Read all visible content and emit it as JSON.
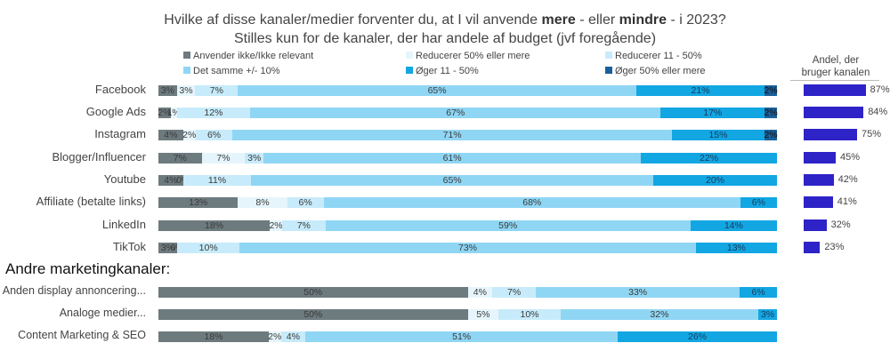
{
  "chart_data": {
    "type": "bar",
    "orientation": "horizontal-stacked-percent",
    "title_parts": [
      {
        "text": "Hvilke af disse kanaler/medier forventer du, at I vil anvende ",
        "bold": false
      },
      {
        "text": "mere",
        "bold": true
      },
      {
        "text": " - eller ",
        "bold": false
      },
      {
        "text": "mindre",
        "bold": true
      },
      {
        "text": " - i 2023?",
        "bold": false
      }
    ],
    "subtitle": "Stilles kun for de kanaler, der har andele af budget (jvf foregående)",
    "series": [
      {
        "name": "Anvender ikke/Ikke relevant",
        "color": "#6d7a7e",
        "label_color": "#3a3a3a"
      },
      {
        "name": "Reducerer 50% eller mere",
        "color": "#e6f5fc",
        "label_color": "#3a3a3a"
      },
      {
        "name": "Reducerer 11 - 50%",
        "color": "#c7ebfa",
        "label_color": "#3a3a3a"
      },
      {
        "name": "Det samme +/- 10%",
        "color": "#8fd6f4",
        "label_color": "#3a3a3a"
      },
      {
        "name": "Øger 11 - 50%",
        "color": "#12a6e2",
        "label_color": "#1a3a5a"
      },
      {
        "name": "Øger 50% eller mere",
        "color": "#1a5f9a",
        "label_color": "#111111"
      }
    ],
    "share_header": [
      "Andel, der",
      "bruger kanalen"
    ],
    "section_label": "Andre marketingkanaler:",
    "rows": [
      {
        "category": "Facebook",
        "values": [
          3,
          3,
          7,
          65,
          21,
          2
        ],
        "labels": [
          "3%",
          "3%",
          "7%",
          "65%",
          "21%",
          "2%"
        ],
        "share": 87,
        "share_label": "87%"
      },
      {
        "category": "Google Ads",
        "values": [
          2,
          1,
          12,
          67,
          17,
          2
        ],
        "labels": [
          "2%",
          "1%",
          "12%",
          "67%",
          "17%",
          "2%"
        ],
        "share": 84,
        "share_label": "84%"
      },
      {
        "category": "Instagram",
        "values": [
          4,
          2,
          6,
          71,
          15,
          2
        ],
        "labels": [
          "4%",
          "2%",
          "6%",
          "71%",
          "15%",
          "2%"
        ],
        "share": 75,
        "share_label": "75%"
      },
      {
        "category": "Blogger/Influencer",
        "values": [
          7,
          7,
          3,
          61,
          22,
          0
        ],
        "labels": [
          "7%",
          "7%",
          "3%",
          "61%",
          "22%",
          ""
        ],
        "share": 45,
        "share_label": "45%"
      },
      {
        "category": "Youtube",
        "values": [
          4,
          0,
          11,
          65,
          20,
          0
        ],
        "labels": [
          "4%",
          "0%",
          "11%",
          "65%",
          "20%",
          ""
        ],
        "share": 42,
        "share_label": "42%"
      },
      {
        "category": "Affiliate (betalte links)",
        "values": [
          13,
          8,
          6,
          68,
          6,
          0
        ],
        "labels": [
          "13%",
          "8%",
          "6%",
          "68%",
          "6%",
          ""
        ],
        "share": 41,
        "share_label": "41%"
      },
      {
        "category": "LinkedIn",
        "values": [
          18,
          2,
          7,
          59,
          14,
          0
        ],
        "labels": [
          "18%",
          "2%",
          "7%",
          "59%",
          "14%",
          ""
        ],
        "share": 32,
        "share_label": "32%"
      },
      {
        "category": "TikTok",
        "values": [
          3,
          0,
          10,
          73,
          13,
          0
        ],
        "labels": [
          "3%",
          "0%",
          "10%",
          "73%",
          "13%",
          ""
        ],
        "share": 23,
        "share_label": "23%"
      },
      {
        "category": "Anden display annoncering...",
        "values": [
          50,
          4,
          7,
          33,
          6,
          0
        ],
        "labels": [
          "50%",
          "4%",
          "7%",
          "33%",
          "6%",
          ""
        ]
      },
      {
        "category": "Analoge medier...",
        "values": [
          50,
          5,
          10,
          32,
          3,
          0
        ],
        "labels": [
          "50%",
          "5%",
          "10%",
          "32%",
          "3%",
          ""
        ]
      },
      {
        "category": "Content Marketing & SEO",
        "values": [
          18,
          2,
          4,
          51,
          26,
          0
        ],
        "labels": [
          "18%",
          "2%",
          "4%",
          "51%",
          "26%",
          ""
        ]
      }
    ]
  }
}
